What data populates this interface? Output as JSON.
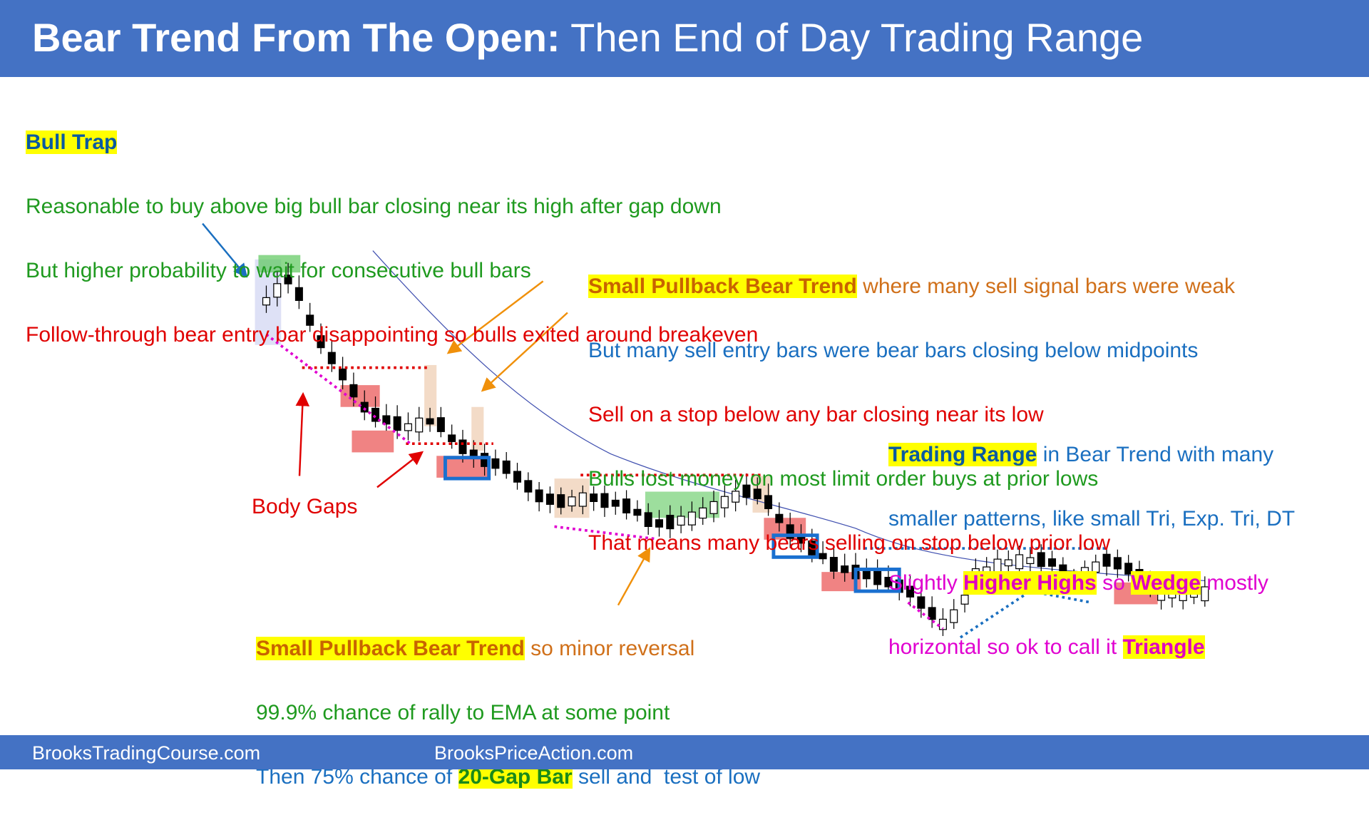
{
  "header": {
    "title_bold": "Bear Trend From The Open:",
    "title_rest": " Then End of Day Trading Range"
  },
  "blocks": {
    "bull_trap": [
      [
        "Bull Trap"
      ],
      [
        "Reasonable to buy above big bull bar closing near its high after gap down"
      ],
      [
        "But higher probability to wait for consecutive bull bars"
      ],
      [
        "Follow-through bear entry bar disappointing so bulls exited around breakeven"
      ]
    ],
    "small_pullback": [
      [
        "Small Pullback Bear Trend",
        " where many sell signal bars were weak"
      ],
      [
        "But many sell entry bars were bear bars closing below midpoints"
      ],
      [
        "Sell on a stop below any bar closing near its low"
      ],
      [
        "Bulls lost money on most limit order buys at prior lows"
      ],
      [
        "That means many bears selling on stop below prior low"
      ]
    ],
    "trading_range": [
      [
        "Trading Range",
        " in Bear Trend with many"
      ],
      [
        "smaller patterns, like small Tri, Exp. Tri, DT"
      ],
      [
        "Slightly ",
        "Higher Highs",
        " so ",
        "Wedge",
        " mostly"
      ],
      [
        "horizontal so ok to call it ",
        "Triangle"
      ]
    ],
    "minor_reversal": [
      [
        "Small Pullback Bear Trend",
        " so minor reversal"
      ],
      [
        "99.9% chance of rally to EMA at some point"
      ],
      [
        "Then 75% chance of ",
        "20-Gap Bar",
        " sell and  test of low"
      ]
    ],
    "body_gaps": "Body Gaps"
  },
  "footer": {
    "left": "BrooksTradingCourse.com",
    "right": "BrooksPriceAction.com"
  }
}
